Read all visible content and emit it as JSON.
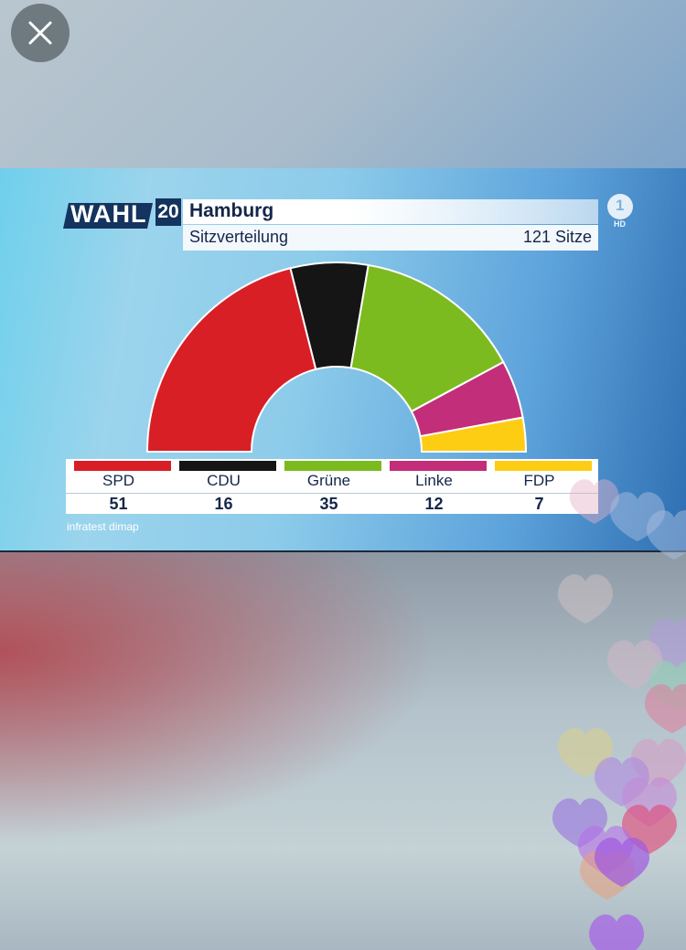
{
  "close_icon": "close-icon",
  "header": {
    "logo_text": "WAHL",
    "logo_number": "20",
    "title": "Hamburg",
    "subtitle": "Sitzverteilung",
    "total_seats": "121 Sitze"
  },
  "channel": {
    "logo": "1",
    "hd": "HD"
  },
  "source": "infratest dimap",
  "colors": {
    "SPD": "#d81f26",
    "CDU": "#151515",
    "Grüne": "#7cbb1f",
    "Linke": "#c22e7a",
    "FDP": "#fdcd14"
  },
  "chart_data": {
    "type": "pie",
    "title": "Hamburg",
    "subtitle": "Sitzverteilung",
    "total": 121,
    "categories": [
      "SPD",
      "CDU",
      "Grüne",
      "Linke",
      "FDP"
    ],
    "values": [
      51,
      16,
      35,
      12,
      7
    ],
    "shape": "semicircle-donut",
    "legend_placement": "bottom"
  }
}
